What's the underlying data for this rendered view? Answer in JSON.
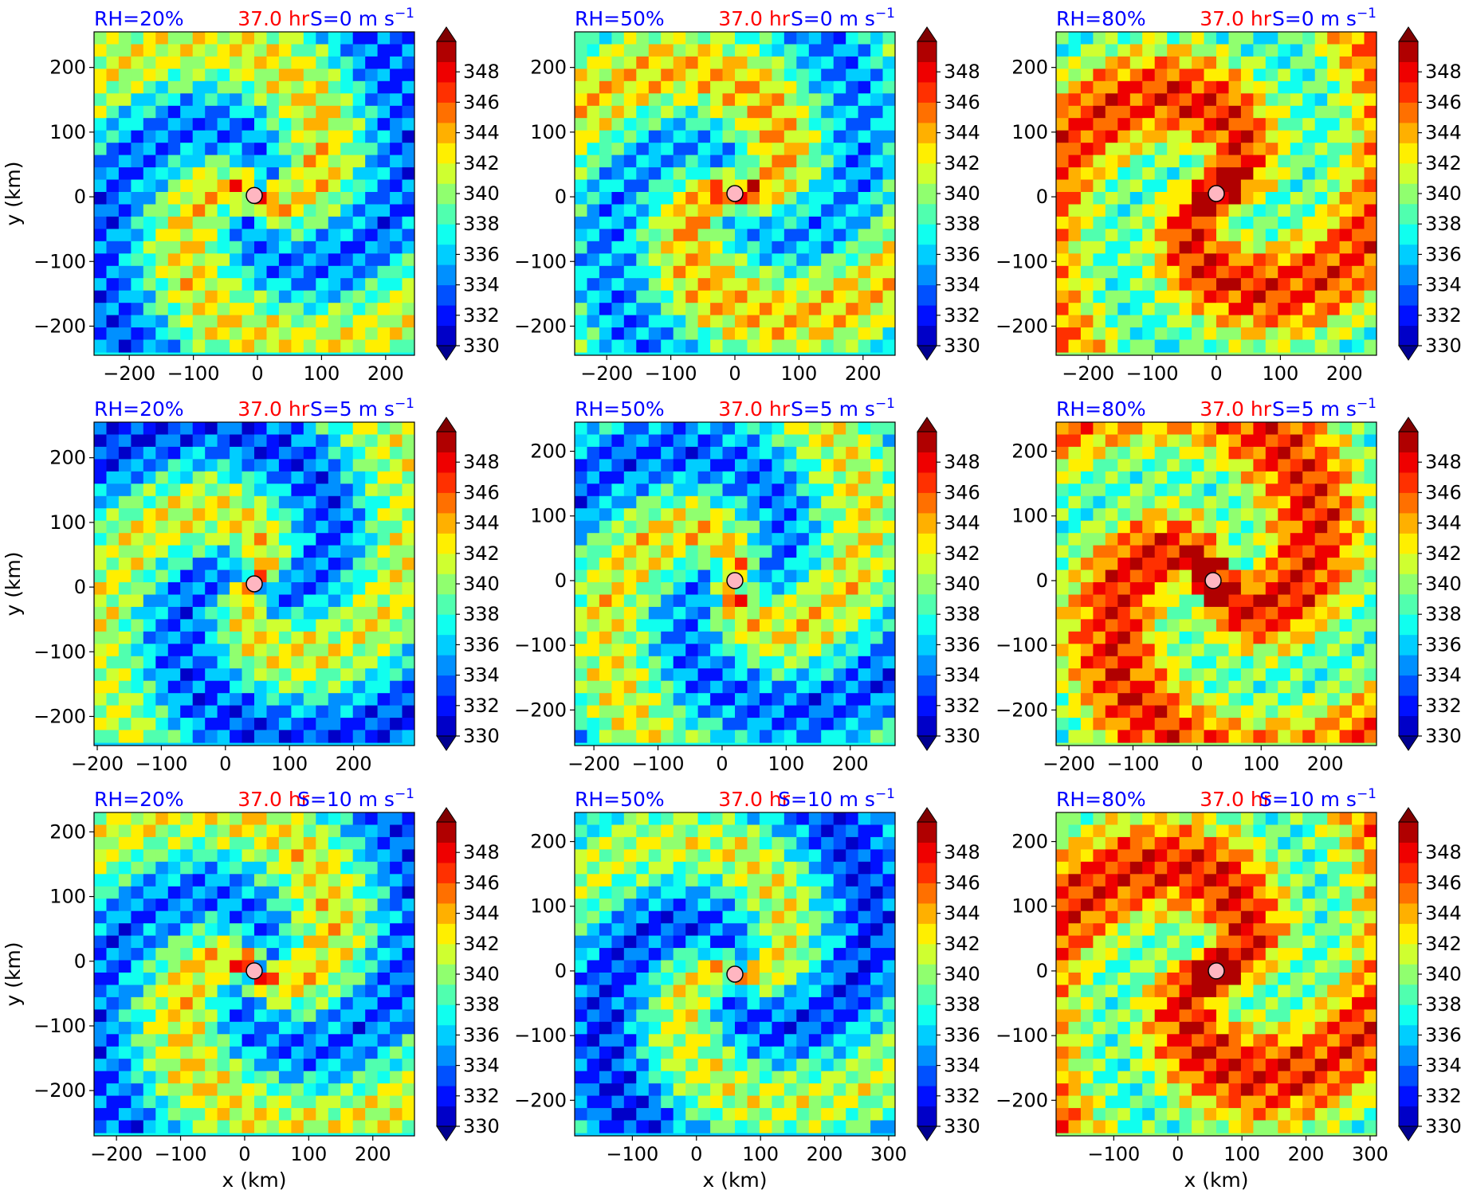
{
  "figure": {
    "time_label": "37.0 hr",
    "xlabel": "x (km)",
    "ylabel": "y (km)"
  },
  "chart_data": [
    {
      "type": "heatmap",
      "rh": "RH=20%",
      "shear": "S=0 m s",
      "shear_exp": "−1",
      "xlim": [
        -255,
        245
      ],
      "ylim": [
        -245,
        255
      ],
      "xticks": [
        -200,
        -100,
        0,
        100,
        200
      ],
      "yticks": [
        -200,
        -100,
        0,
        100,
        200
      ],
      "center": [
        -5,
        2
      ],
      "tone": 0.45,
      "xlabel": "",
      "ylabel": "y (km)"
    },
    {
      "type": "heatmap",
      "rh": "RH=50%",
      "shear": "S=0 m s",
      "shear_exp": "−1",
      "xlim": [
        -250,
        250
      ],
      "ylim": [
        -245,
        255
      ],
      "xticks": [
        -200,
        -100,
        0,
        100,
        200
      ],
      "yticks": [
        -200,
        -100,
        0,
        100,
        200
      ],
      "center": [
        0,
        5
      ],
      "tone": 0.5,
      "xlabel": "",
      "ylabel": ""
    },
    {
      "type": "heatmap",
      "rh": "RH=80%",
      "shear": "S=0 m s",
      "shear_exp": "−1",
      "xlim": [
        -250,
        250
      ],
      "ylim": [
        -245,
        255
      ],
      "xticks": [
        -200,
        -100,
        0,
        100,
        200
      ],
      "yticks": [
        -200,
        -100,
        0,
        100,
        200
      ],
      "center": [
        0,
        5
      ],
      "tone": 0.68,
      "xlabel": "",
      "ylabel": ""
    },
    {
      "type": "heatmap",
      "rh": "RH=20%",
      "shear": "S=5 m s",
      "shear_exp": "−1",
      "xlim": [
        -205,
        295
      ],
      "ylim": [
        -245,
        255
      ],
      "xticks": [
        -200,
        -100,
        0,
        100,
        200
      ],
      "yticks": [
        -200,
        -100,
        0,
        100,
        200
      ],
      "center": [
        45,
        5
      ],
      "tone": 0.42,
      "xlabel": "",
      "ylabel": "y (km)"
    },
    {
      "type": "heatmap",
      "rh": "RH=50%",
      "shear": "S=5 m s",
      "shear_exp": "−1",
      "xlim": [
        -230,
        270
      ],
      "ylim": [
        -255,
        245
      ],
      "xticks": [
        -200,
        -100,
        0,
        100,
        200
      ],
      "yticks": [
        -200,
        -100,
        0,
        100,
        200
      ],
      "center": [
        20,
        0
      ],
      "tone": 0.45,
      "xlabel": "",
      "ylabel": ""
    },
    {
      "type": "heatmap",
      "rh": "RH=80%",
      "shear": "S=5 m s",
      "shear_exp": "−1",
      "xlim": [
        -220,
        280
      ],
      "ylim": [
        -255,
        245
      ],
      "xticks": [
        -200,
        -100,
        0,
        100,
        200
      ],
      "yticks": [
        -200,
        -100,
        0,
        100,
        200
      ],
      "center": [
        25,
        0
      ],
      "tone": 0.7,
      "xlabel": "",
      "ylabel": ""
    },
    {
      "type": "heatmap",
      "rh": "RH=20%",
      "shear": "S=10 m s",
      "shear_exp": "−1",
      "xlim": [
        -235,
        265
      ],
      "ylim": [
        -270,
        230
      ],
      "xticks": [
        -200,
        -100,
        0,
        100,
        200
      ],
      "yticks": [
        -200,
        -100,
        0,
        100,
        200
      ],
      "center": [
        15,
        -15
      ],
      "tone": 0.45,
      "xlabel": "x (km)",
      "ylabel": "y (km)"
    },
    {
      "type": "heatmap",
      "rh": "RH=50%",
      "shear": "S=10 m s",
      "shear_exp": "−1",
      "xlim": [
        -190,
        310
      ],
      "ylim": [
        -255,
        245
      ],
      "xticks": [
        -100,
        0,
        100,
        200,
        300
      ],
      "yticks": [
        -200,
        -100,
        0,
        100,
        200
      ],
      "center": [
        60,
        -5
      ],
      "tone": 0.4,
      "xlabel": "x (km)",
      "ylabel": ""
    },
    {
      "type": "heatmap",
      "rh": "RH=80%",
      "shear": "S=10 m s",
      "shear_exp": "−1",
      "xlim": [
        -190,
        310
      ],
      "ylim": [
        -255,
        245
      ],
      "xticks": [
        -100,
        0,
        100,
        200,
        300
      ],
      "yticks": [
        -200,
        -100,
        0,
        100,
        200
      ],
      "center": [
        60,
        0
      ],
      "tone": 0.7,
      "xlabel": "x (km)",
      "ylabel": ""
    }
  ],
  "colorbar": {
    "ticks": [
      330,
      332,
      334,
      336,
      338,
      340,
      342,
      344,
      346,
      348
    ],
    "vmin": 330,
    "vmax": 350,
    "colors": [
      "#00008f",
      "#0000c8",
      "#0010ff",
      "#0050ff",
      "#0090ff",
      "#00ceff",
      "#10ffef",
      "#50ffaf",
      "#90ff6f",
      "#cfff30",
      "#ffef00",
      "#ffb000",
      "#ff7000",
      "#ff3000",
      "#ef0000",
      "#b00000",
      "#800000"
    ]
  }
}
